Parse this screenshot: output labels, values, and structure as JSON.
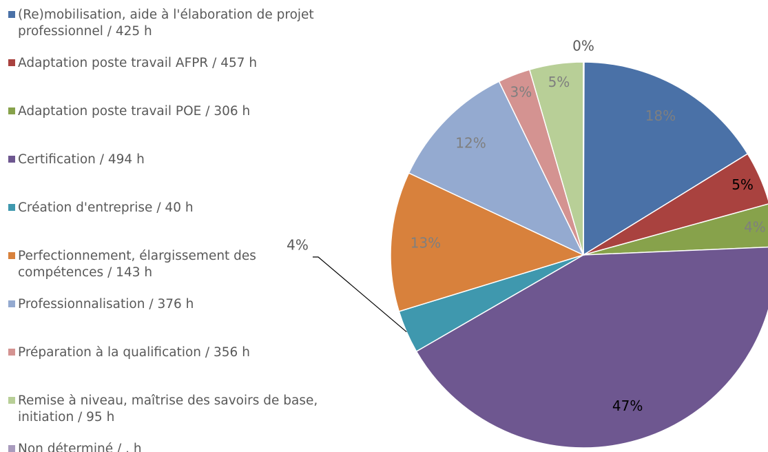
{
  "chart_data": {
    "type": "pie",
    "categories": [
      "(Re)mobilisation, aide à l'élaboration de projet professionnel  / 425 h",
      "Adaptation poste travail AFPR  / 457 h",
      "Adaptation poste travail POE  / 306 h",
      "Certification  / 494 h",
      "Création d'entreprise  / 40 h",
      "Perfectionnement, élargissement des compétences  / 143 h",
      "Professionnalisation  / 376 h",
      "Préparation à la qualification  / 356 h",
      "Remise à niveau, maîtrise des savoirs de base, initiation  / 95 h",
      "Non déterminé  / . h"
    ],
    "values": [
      18,
      5,
      4,
      47,
      4,
      13,
      12,
      3,
      5,
      0
    ],
    "value_labels": [
      "18%",
      "5%",
      "4%",
      "47%",
      "4%",
      "13%",
      "12%",
      "3%",
      "5%",
      "0%"
    ],
    "colors": [
      "#4a71a7",
      "#a9423f",
      "#87a24b",
      "#6e5790",
      "#3f98ae",
      "#d8813c",
      "#94aad0",
      "#d49391",
      "#b8cf97",
      "#a99bbd"
    ],
    "label_colors": [
      "#7f7f7f",
      "#000000",
      "#7f7f7f",
      "#000000",
      "#595959",
      "#7f7f7f",
      "#7f7f7f",
      "#7f7f7f",
      "#7f7f7f",
      "#595959"
    ],
    "legend": "left"
  }
}
